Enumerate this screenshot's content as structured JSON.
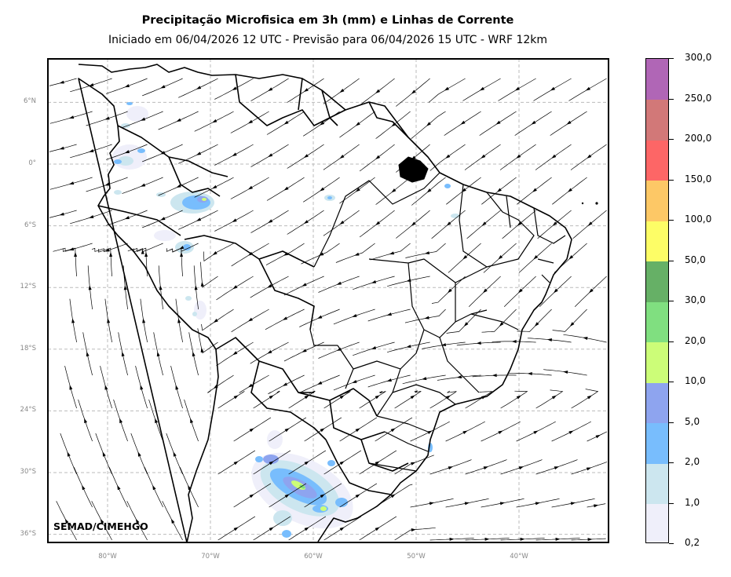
{
  "title": "Precipitação Microfisica em 3h (mm) e Linhas de Corrente",
  "subtitle": "Iniciado em 06/04/2026 12 UTC - Previsão para 06/04/2026 15 UTC - WRF 12km",
  "credit": "SEMAD/CIMEHGO",
  "lat_ticks": [
    {
      "label": "6°N",
      "value": 6
    },
    {
      "label": "0°",
      "value": 0
    },
    {
      "label": "6°S",
      "value": -6
    },
    {
      "label": "12°S",
      "value": -12
    },
    {
      "label": "18°S",
      "value": -18
    },
    {
      "label": "24°S",
      "value": -24
    },
    {
      "label": "30°S",
      "value": -30
    },
    {
      "label": "36°S",
      "value": -36
    }
  ],
  "lon_ticks": [
    {
      "label": "80°W",
      "value": -80
    },
    {
      "label": "70°W",
      "value": -70
    },
    {
      "label": "60°W",
      "value": -60
    },
    {
      "label": "50°W",
      "value": -50
    },
    {
      "label": "40°W",
      "value": -40
    }
  ],
  "colorbar": {
    "levels": [
      "0,2",
      "1,0",
      "2,0",
      "5,0",
      "10,0",
      "20,0",
      "30,0",
      "50,0",
      "100,0",
      "150,0",
      "200,0",
      "250,0",
      "300,0"
    ],
    "colors": [
      "#efeffa",
      "#cce6ef",
      "#78bdfd",
      "#8ea4ef",
      "#ccfd78",
      "#80df80",
      "#66b066",
      "#fdfd66",
      "#fdc866",
      "#fd6666",
      "#d27878",
      "#b066b6"
    ]
  },
  "map_colors": {
    "coastline": "#000000",
    "grid": "#bbbbbb",
    "streamline": "#000000"
  }
}
